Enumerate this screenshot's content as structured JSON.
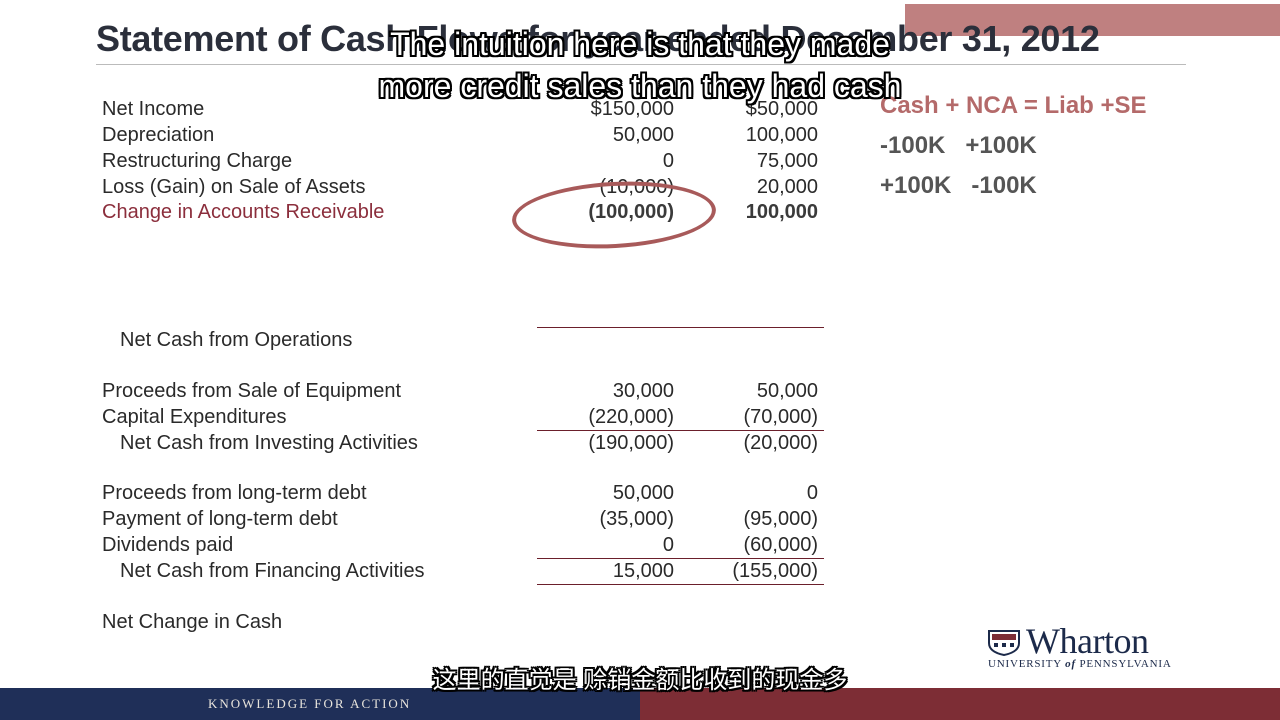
{
  "slide": {
    "title": "Statement of Cash Flows for year ended December 31, 2012",
    "subtitle_en_line1": "The intuition here is that they made",
    "subtitle_en_line2": "more credit sales than they had cash",
    "subtitle_cn": "这里的直觉是 赊销金额比收到的现金多"
  },
  "statement": {
    "operating": [
      {
        "label": "Net Income",
        "c1": "$150,000",
        "c2": "$50,000"
      },
      {
        "label": "Depreciation",
        "c1": "50,000",
        "c2": "100,000"
      },
      {
        "label": "Restructuring Charge",
        "c1": "0",
        "c2": "75,000"
      },
      {
        "label": "Loss (Gain) on Sale of Assets",
        "c1": "(10,000)",
        "c2": "20,000"
      },
      {
        "label": "Change in Accounts Receivable",
        "c1": "(100,000)",
        "c2": "100,000"
      }
    ],
    "net_operations_label": "Net Cash from Operations",
    "investing": [
      {
        "label": "Proceeds from Sale of Equipment",
        "c1": "30,000",
        "c2": "50,000"
      },
      {
        "label": "Capital Expenditures",
        "c1": "(220,000)",
        "c2": "(70,000)"
      }
    ],
    "net_investing": {
      "label": "Net Cash from Investing Activities",
      "c1": "(190,000)",
      "c2": "(20,000)"
    },
    "financing": [
      {
        "label": "Proceeds from long-term debt",
        "c1": "50,000",
        "c2": "0"
      },
      {
        "label": "Payment of long-term debt",
        "c1": "(35,000)",
        "c2": "(95,000)"
      },
      {
        "label": "Dividends paid",
        "c1": "0",
        "c2": "(60,000)"
      }
    ],
    "net_financing": {
      "label": "Net Cash from Financing Activities",
      "c1": "15,000",
      "c2": "(155,000)"
    },
    "net_change_label": "Net Change in Cash"
  },
  "equation": {
    "line1": "Cash + NCA = Liab +SE",
    "line2": "-100K   +100K",
    "line3": "+100K   -100K"
  },
  "branding": {
    "logo_word": "Wharton",
    "logo_sub_a": "UNIVERSITY",
    "logo_sub_of": "of",
    "logo_sub_b": "PENNSYLVANIA",
    "footer_tagline": "KNOWLEDGE FOR ACTION"
  },
  "colors": {
    "navy": "#1f2f58",
    "maroon": "#7d2d35",
    "accent_rose": "#b46a6a"
  }
}
